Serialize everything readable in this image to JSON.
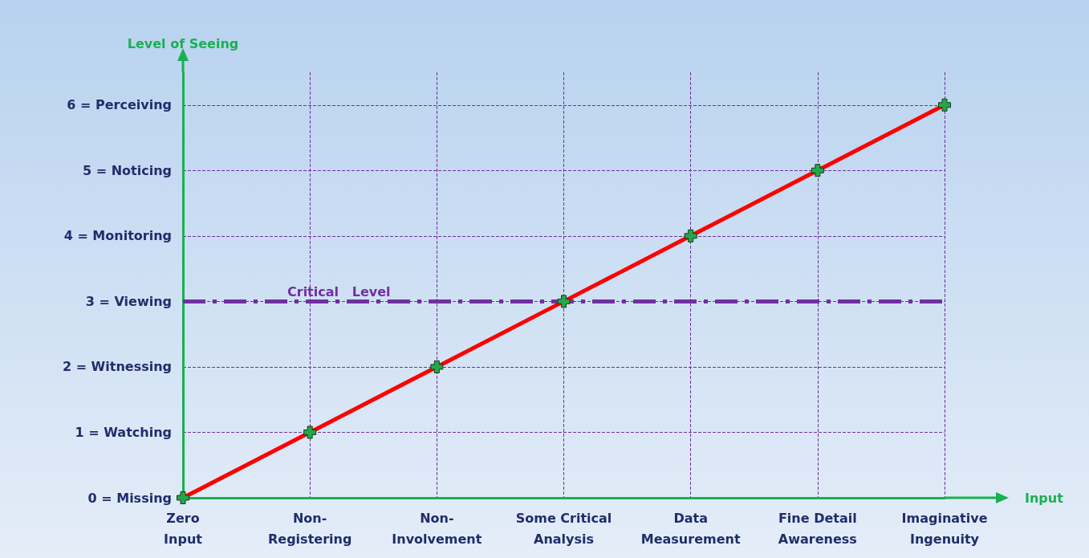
{
  "chart_data": {
    "type": "line",
    "xlabel": "Input",
    "ylabel": "Level of Seeing",
    "categories": [
      "Zero\nInput",
      "Non-\nRegistering",
      "Non-\nInvolvement",
      "Some Critical\nAnalysis",
      "Data\nMeasurement",
      "Fine Detail\nAwareness",
      "Imaginative\nIngenuity"
    ],
    "series": [
      {
        "color": "#ff0000",
        "colors": [
          "#22a84a",
          "#22a84a",
          "#22a84a",
          "#22a84a",
          "#22a84a",
          "#22a84a",
          "#22a84a"
        ],
        "values": [
          0,
          1,
          2,
          3,
          4,
          5,
          6
        ]
      }
    ],
    "ylim": [
      0,
      6.5
    ],
    "yticks": [
      {
        "value": 0,
        "label": "0 = Missing"
      },
      {
        "value": 1,
        "label": "1 = Watching"
      },
      {
        "value": 2,
        "label": "2 = Witnessing"
      },
      {
        "value": 3,
        "label": "3 = Viewing"
      },
      {
        "value": 4,
        "label": "4 = Monitoring"
      },
      {
        "value": 5,
        "label": "5 = Noticing"
      },
      {
        "value": 6,
        "label": "6 = Perceiving"
      }
    ],
    "ref_lines": [
      {
        "axis": "y",
        "value": 3,
        "label": "Critical   Level",
        "color": "#7030a0",
        "line_style": "dashed"
      }
    ],
    "grid": true,
    "marker": "cross",
    "line_style": "solid"
  }
}
